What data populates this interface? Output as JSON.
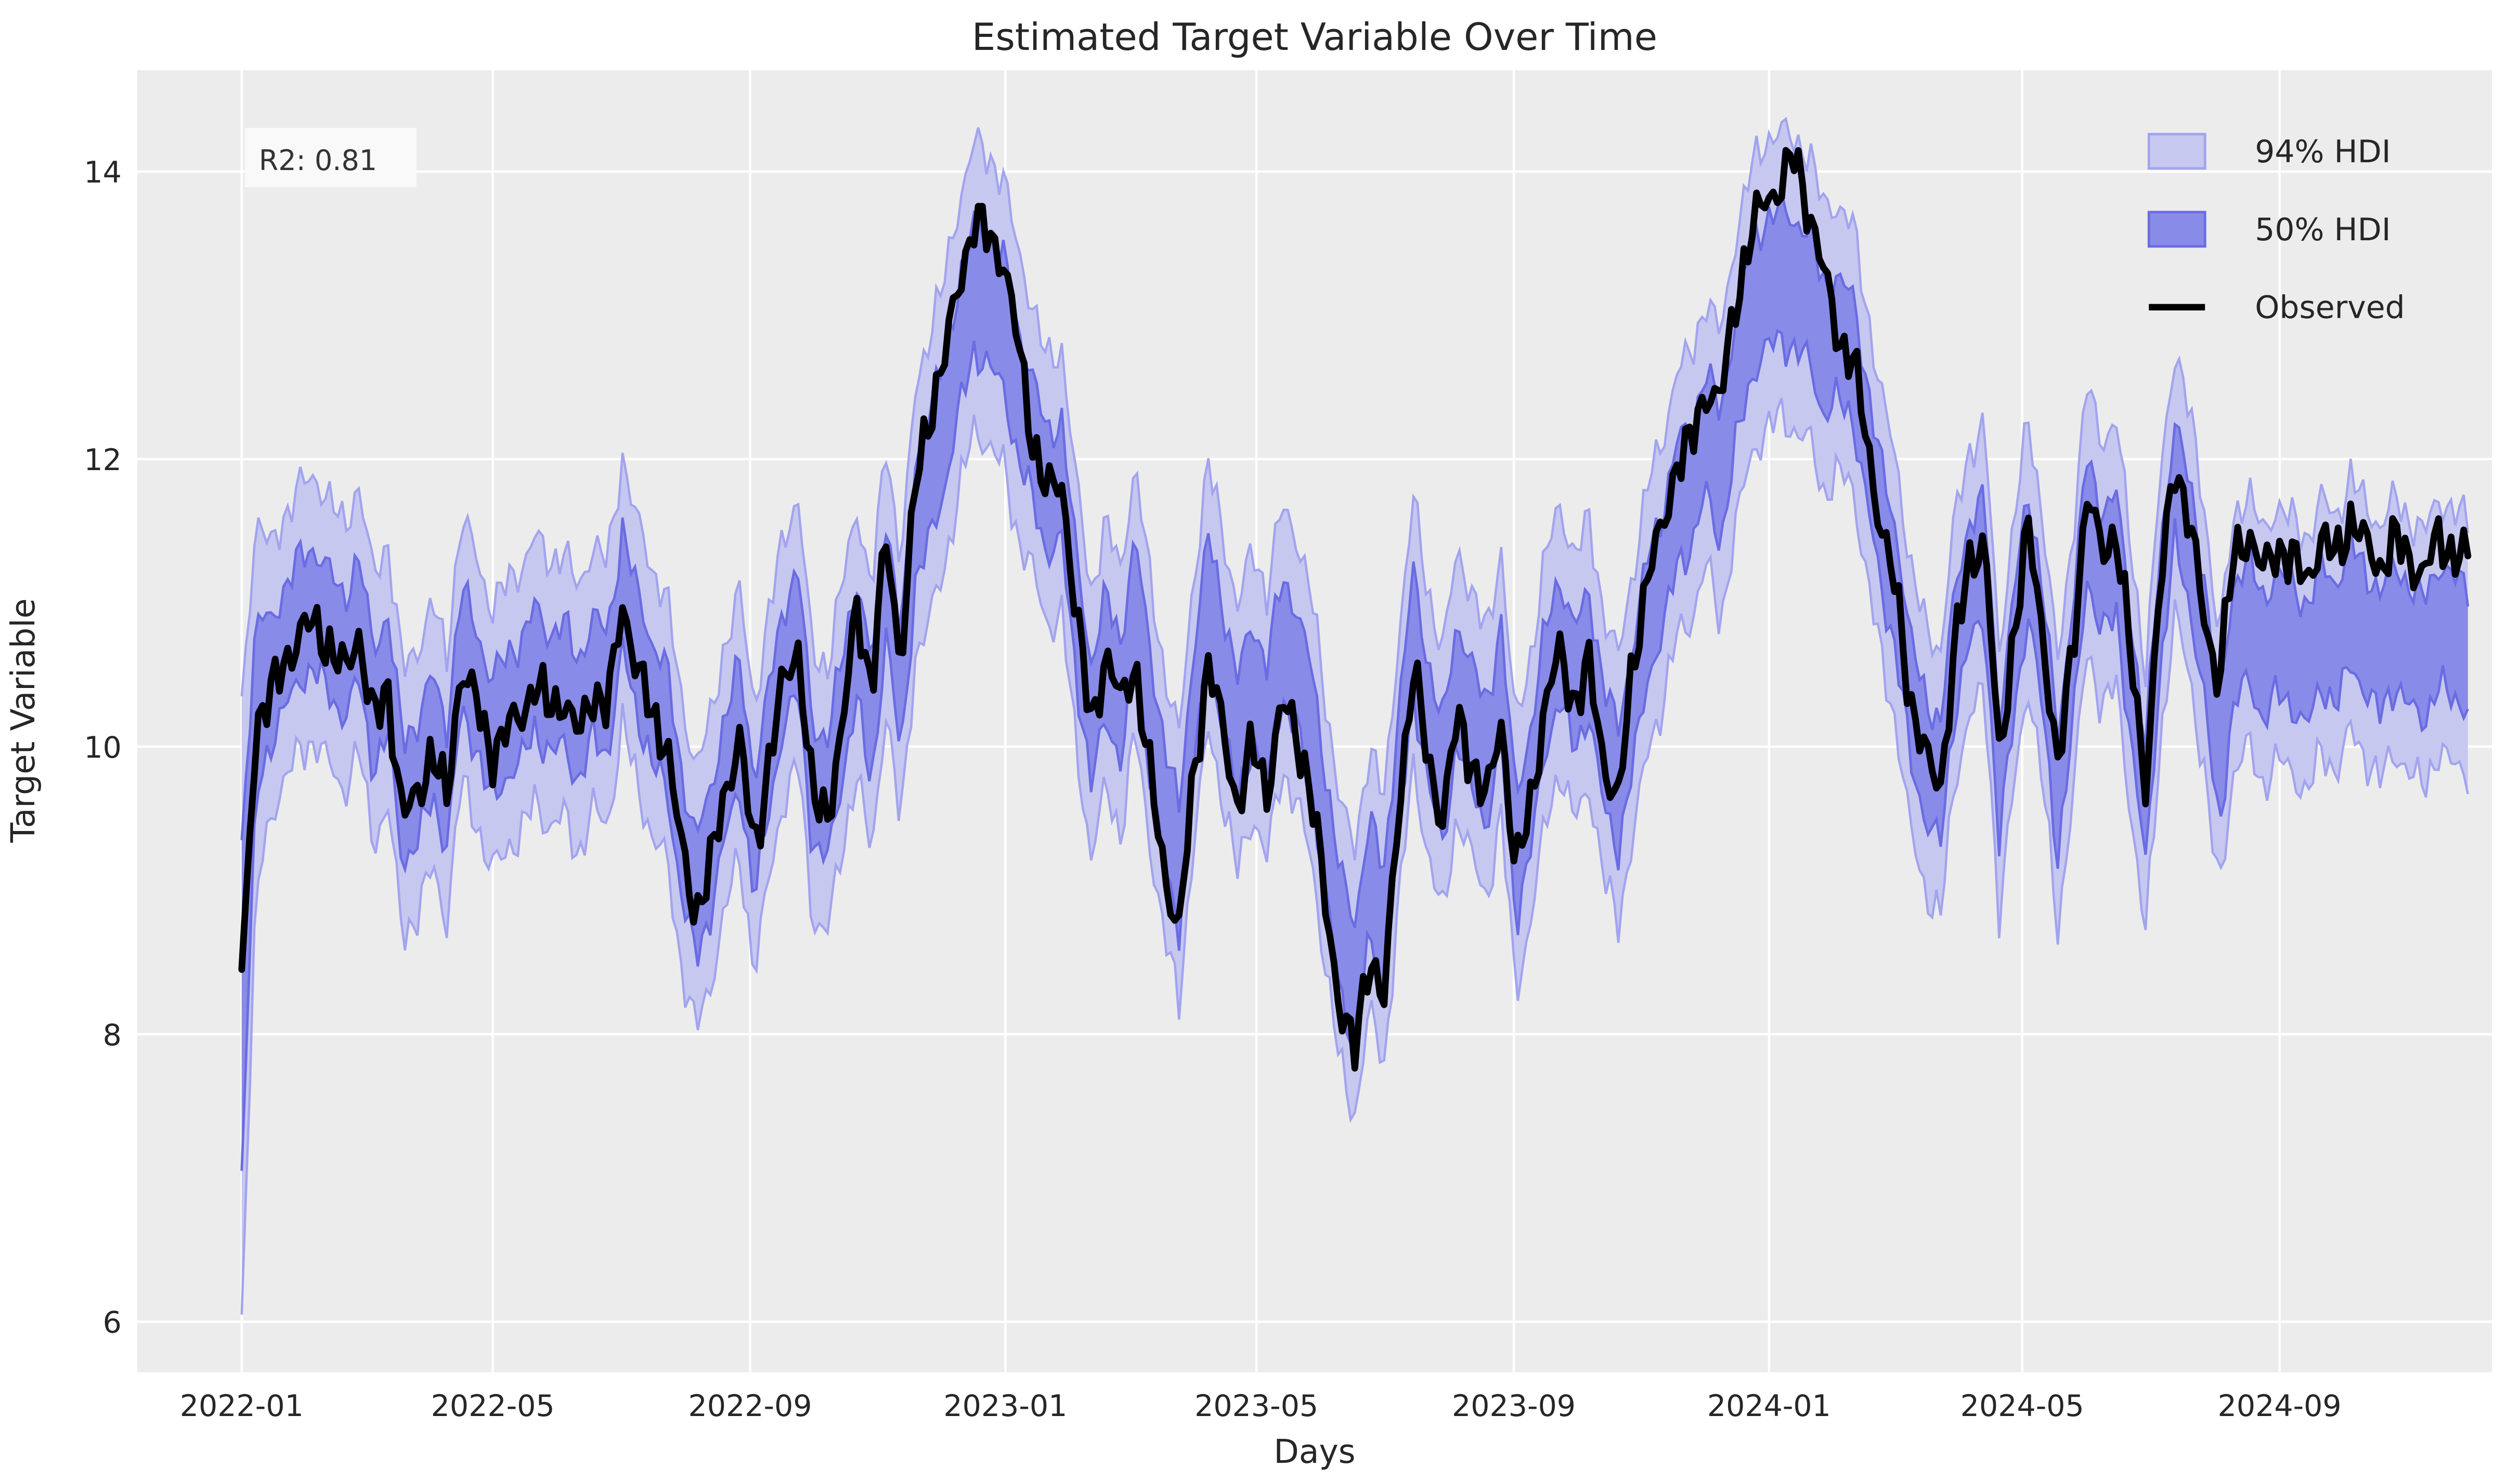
{
  "title": "Estimated Target Variable Over Time",
  "annotation": {
    "r2_label": "R2: 0.81"
  },
  "axes": {
    "xlabel": "Days",
    "ylabel": "Target Variable",
    "y_tick_labels": [
      "6",
      "8",
      "10",
      "12",
      "14"
    ],
    "y_tick_values": [
      6,
      8,
      10,
      12,
      14
    ],
    "x_tick_labels": [
      "2022-01",
      "2022-05",
      "2022-09",
      "2023-01",
      "2023-05",
      "2023-09",
      "2024-01",
      "2024-05",
      "2024-09"
    ],
    "x_tick_days": [
      0,
      120,
      243,
      365,
      485,
      608,
      730,
      851,
      974
    ]
  },
  "legend": {
    "items": [
      {
        "label": "94% HDI",
        "type": "patch",
        "fill": "#c7c8f0",
        "edge": "#a2a4ee"
      },
      {
        "label": "50% HDI",
        "type": "patch",
        "fill": "#898be8",
        "edge": "#6a6ce2"
      },
      {
        "label": "Observed",
        "type": "line",
        "color": "#000000"
      }
    ]
  },
  "colors": {
    "figure_bg": "#ffffff",
    "plot_bg": "#ececec",
    "grid": "#ffffff",
    "observed_line": "#000000",
    "hdi94_fill": "#c7c8f0",
    "hdi94_edge": "#a2a4ee",
    "hdi50_fill": "#898be8",
    "hdi50_edge": "#6a6ce2",
    "text": "#262626",
    "annotation_bg": "#f9f9f9"
  },
  "chart_data": {
    "type": "line",
    "title": "Estimated Target Variable Over Time",
    "xlabel": "Days",
    "ylabel": "Target Variable",
    "x_unit": "days since 2022-01-01",
    "x_start_day": 0,
    "x_step_days": 7,
    "x_end_day": 1064,
    "ylim": [
      5.65,
      14.7
    ],
    "grid": true,
    "legend_position": "upper right",
    "observed": [
      8.45,
      10.2,
      10.35,
      10.6,
      10.8,
      10.85,
      10.7,
      10.5,
      10.8,
      10.15,
      10.4,
      9.5,
      9.65,
      10.0,
      9.6,
      10.6,
      10.3,
      9.95,
      10.1,
      10.2,
      10.45,
      10.25,
      10.35,
      10.05,
      10.4,
      10.25,
      11.0,
      10.55,
      10.2,
      10.05,
      9.3,
      8.85,
      9.15,
      9.7,
      10.05,
      9.25,
      9.9,
      10.45,
      10.7,
      9.6,
      9.55,
      10.1,
      11.0,
      10.4,
      11.45,
      10.6,
      11.8,
      12.35,
      12.7,
      13.25,
      13.65,
      13.55,
      13.4,
      12.8,
      12.15,
      11.75,
      11.85,
      10.9,
      10.15,
      10.65,
      10.3,
      10.6,
      9.8,
      9.15,
      8.7,
      9.8,
      10.6,
      10.1,
      9.6,
      10.0,
      9.7,
      10.3,
      10.1,
      9.7,
      8.9,
      8.2,
      7.85,
      8.6,
      8.2,
      9.6,
      10.55,
      9.9,
      9.5,
      10.2,
      9.9,
      9.6,
      10.2,
      9.1,
      9.6,
      10.3,
      10.65,
      10.3,
      10.55,
      9.9,
      9.6,
      10.6,
      11.2,
      11.5,
      12.0,
      12.1,
      12.5,
      12.4,
      13.1,
      13.55,
      13.8,
      13.9,
      14.1,
      13.75,
      13.3,
      12.85,
      12.7,
      12.1,
      11.5,
      11.05,
      10.3,
      9.9,
      9.75,
      10.7,
      11.3,
      11.45,
      9.9,
      10.8,
      11.5,
      10.8,
      9.8,
      10.7,
      11.75,
      11.35,
      11.5,
      10.6,
      9.75,
      11.1,
      12.0,
      11.55,
      10.9,
      10.45,
      11.3,
      11.5,
      11.2,
      11.4,
      11.3,
      11.15,
      11.45,
      11.3,
      11.6,
      11.4,
      11.25,
      11.45,
      11.3,
      11.2,
      11.45,
      11.35,
      11.3
    ],
    "posterior_mean": [
      8.2,
      10.3,
      10.45,
      10.7,
      10.9,
      10.95,
      10.8,
      10.6,
      10.9,
      10.25,
      10.5,
      9.6,
      9.75,
      10.1,
      9.7,
      10.7,
      10.4,
      10.05,
      10.2,
      10.3,
      10.55,
      10.35,
      10.45,
      10.15,
      10.5,
      10.35,
      11.1,
      10.65,
      10.3,
      10.15,
      9.4,
      8.95,
      9.25,
      9.8,
      10.15,
      9.35,
      10.0,
      10.55,
      10.8,
      9.7,
      9.65,
      10.2,
      10.75,
      10.15,
      11.2,
      10.35,
      11.55,
      11.9,
      12.25,
      12.8,
      13.2,
      13.1,
      12.95,
      12.45,
      12.15,
      11.75,
      11.85,
      10.9,
      10.15,
      10.65,
      10.3,
      11.05,
      10.25,
      9.6,
      9.15,
      10.25,
      11.05,
      10.55,
      10.05,
      10.45,
      10.15,
      10.75,
      10.55,
      10.15,
      9.4,
      8.7,
      8.35,
      9.1,
      8.7,
      9.85,
      10.8,
      10.15,
      9.75,
      10.45,
      10.15,
      9.85,
      10.45,
      9.2,
      9.7,
      10.4,
      10.75,
      10.4,
      10.65,
      10.0,
      9.7,
      10.3,
      10.9,
      11.2,
      11.7,
      11.8,
      12.2,
      11.85,
      12.55,
      13.0,
      13.2,
      13.3,
      13.2,
      13.15,
      12.75,
      12.85,
      12.7,
      12.1,
      11.5,
      11.05,
      10.3,
      9.9,
      9.75,
      10.7,
      11.15,
      11.3,
      9.75,
      10.65,
      11.35,
      10.65,
      9.65,
      10.55,
      11.6,
      11.2,
      11.35,
      10.45,
      9.6,
      10.95,
      11.85,
      11.4,
      10.75,
      9.85,
      10.7,
      10.9,
      10.6,
      10.8,
      10.7,
      10.55,
      10.85,
      10.7,
      11.0,
      10.8,
      10.65,
      10.85,
      10.7,
      10.6,
      10.85,
      10.75,
      10.7
    ],
    "hdi50_halfwidth": [
      1.15,
      0.6,
      0.42,
      0.42,
      0.42,
      0.42,
      0.42,
      0.42,
      0.42,
      0.42,
      0.42,
      0.42,
      0.42,
      0.42,
      0.42,
      0.42,
      0.42,
      0.42,
      0.42,
      0.42,
      0.42,
      0.42,
      0.42,
      0.42,
      0.42,
      0.42,
      0.42,
      0.42,
      0.42,
      0.42,
      0.42,
      0.42,
      0.42,
      0.42,
      0.42,
      0.42,
      0.42,
      0.42,
      0.42,
      0.42,
      0.42,
      0.42,
      0.42,
      0.42,
      0.42,
      0.42,
      0.42,
      0.45,
      0.45,
      0.45,
      0.45,
      0.45,
      0.45,
      0.45,
      0.42,
      0.42,
      0.42,
      0.42,
      0.42,
      0.42,
      0.42,
      0.42,
      0.42,
      0.42,
      0.42,
      0.42,
      0.42,
      0.42,
      0.42,
      0.42,
      0.42,
      0.42,
      0.42,
      0.42,
      0.42,
      0.42,
      0.42,
      0.42,
      0.42,
      0.42,
      0.42,
      0.42,
      0.42,
      0.42,
      0.42,
      0.42,
      0.42,
      0.42,
      0.42,
      0.42,
      0.42,
      0.42,
      0.42,
      0.42,
      0.42,
      0.42,
      0.42,
      0.42,
      0.42,
      0.42,
      0.42,
      0.45,
      0.45,
      0.45,
      0.45,
      0.45,
      0.45,
      0.45,
      0.45,
      0.42,
      0.42,
      0.42,
      0.42,
      0.42,
      0.42,
      0.42,
      0.42,
      0.42,
      0.42,
      0.42,
      0.42,
      0.42,
      0.42,
      0.42,
      0.42,
      0.42,
      0.42,
      0.42,
      0.42,
      0.42,
      0.42,
      0.42,
      0.42,
      0.42,
      0.42,
      0.42,
      0.42,
      0.42,
      0.42,
      0.42,
      0.42,
      0.42,
      0.42,
      0.42,
      0.42,
      0.42,
      0.42,
      0.42,
      0.42,
      0.42,
      0.42,
      0.42,
      0.42
    ],
    "hdi94_halfwidth": [
      2.15,
      1.3,
      0.92,
      0.92,
      0.92,
      0.92,
      0.92,
      0.92,
      0.92,
      0.92,
      0.92,
      0.92,
      0.92,
      0.92,
      0.92,
      0.92,
      0.92,
      0.92,
      0.92,
      0.92,
      0.92,
      0.92,
      0.92,
      0.92,
      0.92,
      0.92,
      0.92,
      0.92,
      0.92,
      0.92,
      0.92,
      0.92,
      0.92,
      0.92,
      0.92,
      0.92,
      0.92,
      0.92,
      0.92,
      0.92,
      0.92,
      0.92,
      0.92,
      0.92,
      0.92,
      0.92,
      0.92,
      1.0,
      1.0,
      1.0,
      1.0,
      1.0,
      1.0,
      1.0,
      0.92,
      0.92,
      0.92,
      0.92,
      0.92,
      0.92,
      0.92,
      0.92,
      0.92,
      0.92,
      0.92,
      0.92,
      0.92,
      0.92,
      0.92,
      0.92,
      0.92,
      0.92,
      0.92,
      0.92,
      0.92,
      0.92,
      0.92,
      0.92,
      0.92,
      0.92,
      0.92,
      0.92,
      0.92,
      0.92,
      0.92,
      0.92,
      0.92,
      0.92,
      0.92,
      0.92,
      0.92,
      0.92,
      0.92,
      0.92,
      0.92,
      0.92,
      0.92,
      0.92,
      0.92,
      0.92,
      0.92,
      1.0,
      1.0,
      1.0,
      1.0,
      1.0,
      1.0,
      1.0,
      1.0,
      0.92,
      0.92,
      0.92,
      0.92,
      0.92,
      0.92,
      0.92,
      0.92,
      0.92,
      0.92,
      0.92,
      0.92,
      0.92,
      0.92,
      0.92,
      0.92,
      0.92,
      0.92,
      0.92,
      0.92,
      0.92,
      0.92,
      0.92,
      0.92,
      0.92,
      0.92,
      0.88,
      0.88,
      0.88,
      0.88,
      0.88,
      0.88,
      0.88,
      0.88,
      0.88,
      0.88,
      0.88,
      0.88,
      0.88,
      0.88,
      0.88,
      0.88,
      0.88,
      0.88
    ],
    "texture_jitter": {
      "line": 0.13,
      "band": 0.1
    }
  }
}
